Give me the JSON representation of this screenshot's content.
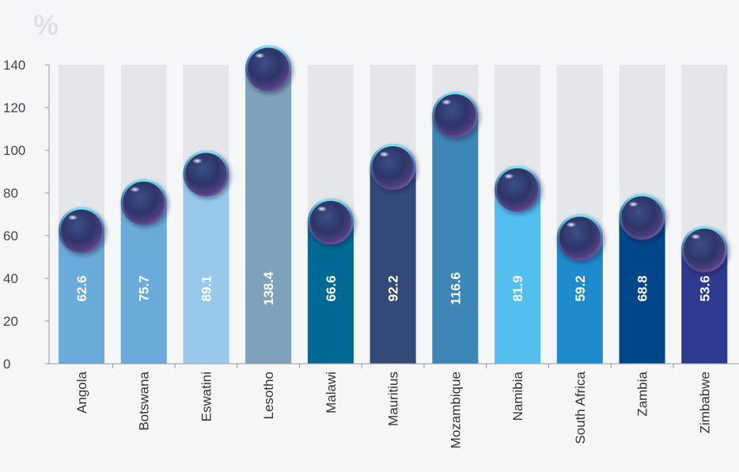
{
  "chart_data": {
    "type": "bar",
    "ylabel": "%",
    "ylim": [
      0,
      140
    ],
    "yticks": [
      0,
      20,
      40,
      60,
      80,
      100,
      120,
      140
    ],
    "grid": false,
    "categories": [
      "Angola",
      "Botswana",
      "Eswatini",
      "Lesotho",
      "Malawi",
      "Mauritius",
      "Mozambique",
      "Namibia",
      "South Africa",
      "Zambia",
      "Zimbabwe"
    ],
    "values": [
      62.6,
      75.7,
      89.1,
      138.4,
      66.6,
      92.2,
      116.6,
      81.9,
      59.2,
      68.8,
      53.6
    ],
    "value_labels": [
      "62.6",
      "75.7",
      "89.1",
      "138.4",
      "66.6",
      "92.2",
      "116.6",
      "81.9",
      "59.2",
      "68.8",
      "53.6"
    ],
    "colors": [
      "#6aabdb",
      "#6aabdb",
      "#98c8ea",
      "#7ea2bb",
      "#006a94",
      "#334a79",
      "#3e85b8",
      "#52bfef",
      "#1e8bcc",
      "#00478a",
      "#2e3a8e"
    ],
    "background_bar_color": "#e4e6ea",
    "marker": "glass-ball"
  }
}
